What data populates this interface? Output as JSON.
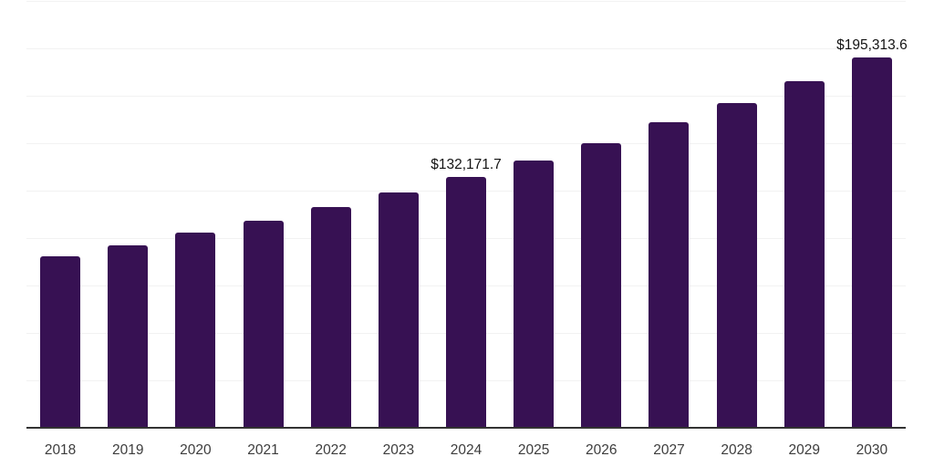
{
  "chart_data": {
    "type": "bar",
    "title": "",
    "xlabel": "",
    "ylabel": "",
    "categories": [
      "2018",
      "2019",
      "2020",
      "2021",
      "2022",
      "2023",
      "2024",
      "2025",
      "2026",
      "2027",
      "2028",
      "2029",
      "2030"
    ],
    "values": [
      90400,
      96200,
      102900,
      109200,
      116400,
      124100,
      132171.7,
      140900,
      150000,
      161100,
      171200,
      182700,
      195313.6
    ],
    "data_labels": {
      "2024": "$132,171.7",
      "2030": "$195,313.6"
    },
    "ylim": [
      0,
      225000
    ],
    "gridline_step": 25000,
    "grid": true,
    "legend": "none",
    "colors": {
      "bar": "#371153",
      "gridline": "#f2f2f2",
      "axis_line": "#333333",
      "tick_label": "#3d3d3d",
      "data_label": "#141414",
      "background": "#ffffff"
    }
  }
}
